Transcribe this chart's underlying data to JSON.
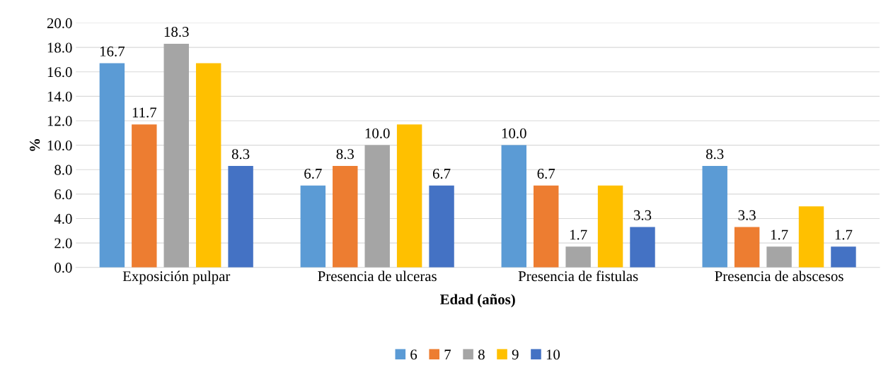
{
  "chart_data": {
    "type": "bar",
    "xlabel": "Edad (años)",
    "ylabel": "%",
    "categories": [
      "Exposición pulpar",
      "Presencia de ulceras",
      "Presencia de fistulas",
      "Presencia de abscesos"
    ],
    "series": [
      {
        "name": "6",
        "color": "#5b9bd5",
        "values": [
          16.7,
          6.7,
          10.0,
          8.3
        ],
        "value_labels": [
          "16.7",
          "6.7",
          "10.0",
          "8.3"
        ]
      },
      {
        "name": "7",
        "color": "#ed7d31",
        "values": [
          11.7,
          8.3,
          6.7,
          3.3
        ],
        "value_labels": [
          "11.7",
          "8.3",
          "6.7",
          "3.3"
        ]
      },
      {
        "name": "8",
        "color": "#a5a5a5",
        "values": [
          18.3,
          10.0,
          1.7,
          1.7
        ],
        "value_labels": [
          "18.3",
          "10.0",
          "1.7",
          "1.7"
        ]
      },
      {
        "name": "9",
        "color": "#ffc000",
        "values": [
          16.7,
          11.7,
          6.7,
          5.0
        ],
        "value_labels": [
          null,
          null,
          null,
          null
        ]
      },
      {
        "name": "10",
        "color": "#4472c4",
        "values": [
          8.3,
          6.7,
          3.3,
          1.7
        ],
        "value_labels": [
          "8.3",
          "6.7",
          "3.3",
          "1.7"
        ]
      }
    ],
    "ylim": [
      0,
      20
    ],
    "yticks": [
      {
        "value": 0,
        "label": "0.0"
      },
      {
        "value": 2,
        "label": "2.0"
      },
      {
        "value": 4,
        "label": "4.0"
      },
      {
        "value": 6,
        "label": "6.0"
      },
      {
        "value": 8,
        "label": "8.0"
      },
      {
        "value": 10,
        "label": "10.0"
      },
      {
        "value": 12,
        "label": "12.0"
      },
      {
        "value": 14,
        "label": "14.0"
      },
      {
        "value": 16,
        "label": "16.0"
      },
      {
        "value": 18,
        "label": "18.0"
      },
      {
        "value": 20,
        "label": "20.0"
      }
    ],
    "grid": "y",
    "legend": "bottom"
  }
}
